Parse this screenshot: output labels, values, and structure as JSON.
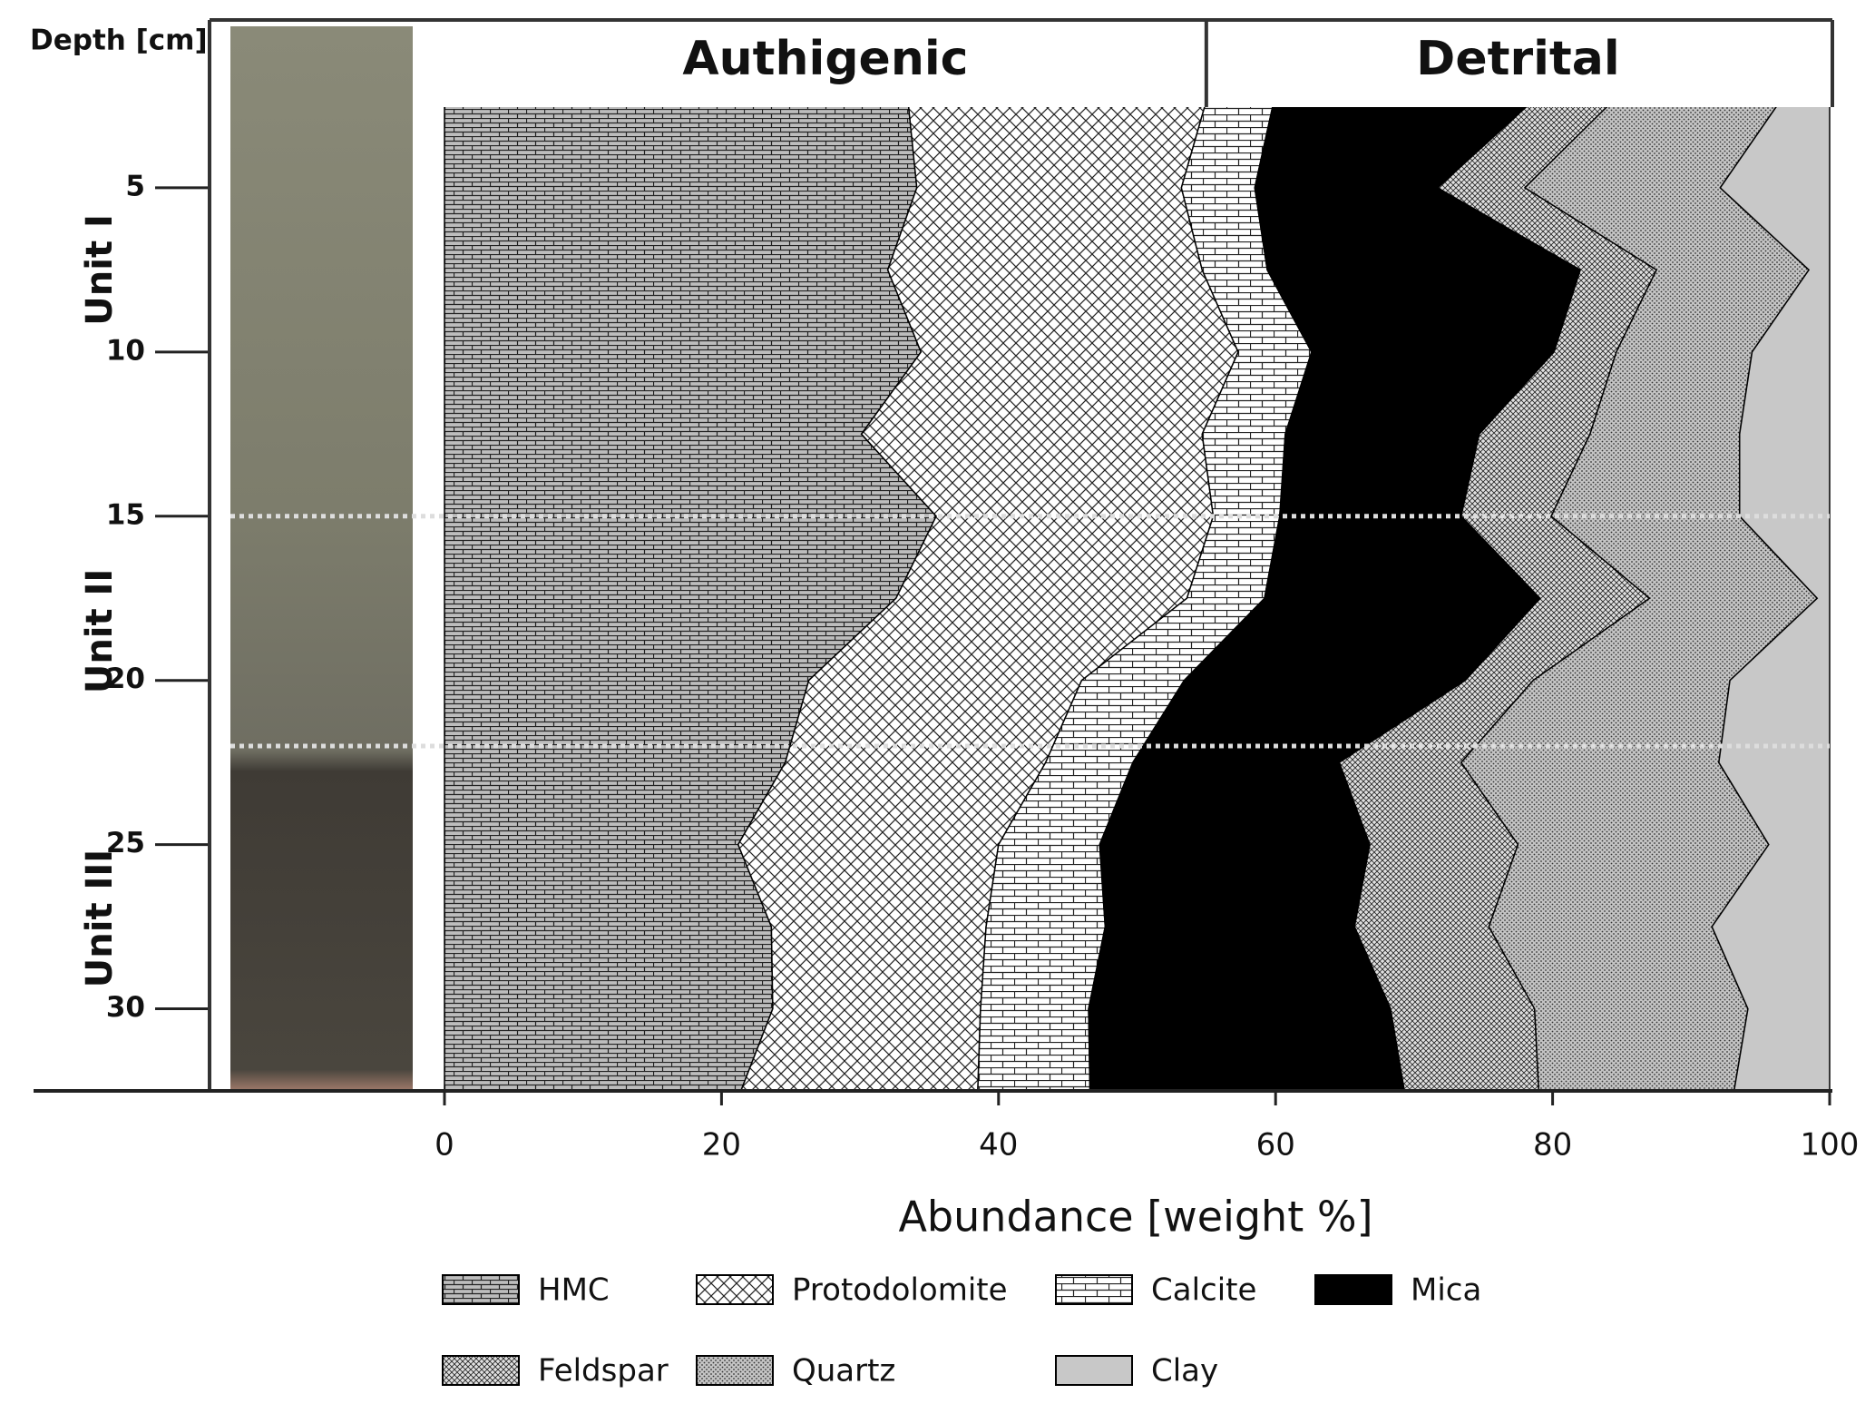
{
  "chart_data": {
    "type": "stacked-area-horizontal",
    "y_axis_label": "Depth [cm]",
    "x_axis_label": "Abundance [weight %]",
    "xlim": [
      0,
      100
    ],
    "xticks": [
      0,
      20,
      40,
      60,
      80,
      100
    ],
    "ylim": [
      0,
      32.5
    ],
    "yticks": [
      5,
      10,
      15,
      20,
      25,
      30
    ],
    "depths": [
      2.5,
      5,
      7.5,
      10,
      12.5,
      15,
      17.5,
      20,
      22.5,
      25,
      27.5,
      30,
      32.5
    ],
    "groups": [
      {
        "name": "Authigenic",
        "end": 55
      },
      {
        "name": "Detrital",
        "end": 100
      }
    ],
    "units": [
      {
        "label": "Unit I",
        "top": 0,
        "bottom": 15
      },
      {
        "label": "Unit II",
        "top": 15,
        "bottom": 22
      },
      {
        "label": "Unit III",
        "top": 22,
        "bottom": 32.5
      }
    ],
    "series": [
      {
        "name": "HMC",
        "color": "#bdbdbd",
        "pattern": "brick",
        "values": [
          33.5,
          34.1,
          32.0,
          34.4,
          30.1,
          35.5,
          32.6,
          26.3,
          24.6,
          21.2,
          23.6,
          23.7,
          21.4
        ]
      },
      {
        "name": "Protodolomite",
        "color": "#ffffff",
        "pattern": "cross",
        "values": [
          21.4,
          19.1,
          22.7,
          22.9,
          24.6,
          20.0,
          21.0,
          19.7,
          18.8,
          18.8,
          15.5,
          15.0,
          17.1
        ]
      },
      {
        "name": "Calcite",
        "color": "#ffffff",
        "pattern": "bigbrick",
        "values": [
          4.9,
          5.3,
          4.7,
          5.3,
          6.0,
          4.8,
          5.6,
          7.4,
          6.3,
          7.3,
          8.6,
          7.8,
          8.1
        ]
      },
      {
        "name": "Mica",
        "color": "#000000",
        "pattern": "solid",
        "values": [
          18.4,
          13.2,
          22.6,
          17.5,
          14.0,
          13.1,
          19.9,
          20.3,
          14.9,
          19.5,
          18.0,
          21.8,
          22.7
        ]
      },
      {
        "name": "Feldspar",
        "color": "#e0e0e0",
        "pattern": "finecross",
        "values": [
          5.8,
          6.3,
          5.5,
          4.5,
          8.0,
          6.5,
          7.9,
          4.9,
          8.8,
          10.7,
          9.7,
          10.4,
          9.7
        ]
      },
      {
        "name": "Quartz",
        "color": "#c4c4c4",
        "pattern": "dots",
        "values": [
          12.2,
          14.1,
          11.0,
          9.8,
          10.8,
          13.6,
          12.1,
          14.2,
          18.6,
          18.1,
          16.1,
          15.4,
          14.1
        ]
      },
      {
        "name": "Clay",
        "color": "#c8c8c8",
        "pattern": "solid",
        "values": [
          3.8,
          7.9,
          1.5,
          5.6,
          6.5,
          6.5,
          0.9,
          7.2,
          8.0,
          4.4,
          8.5,
          5.9,
          6.9
        ]
      }
    ]
  }
}
